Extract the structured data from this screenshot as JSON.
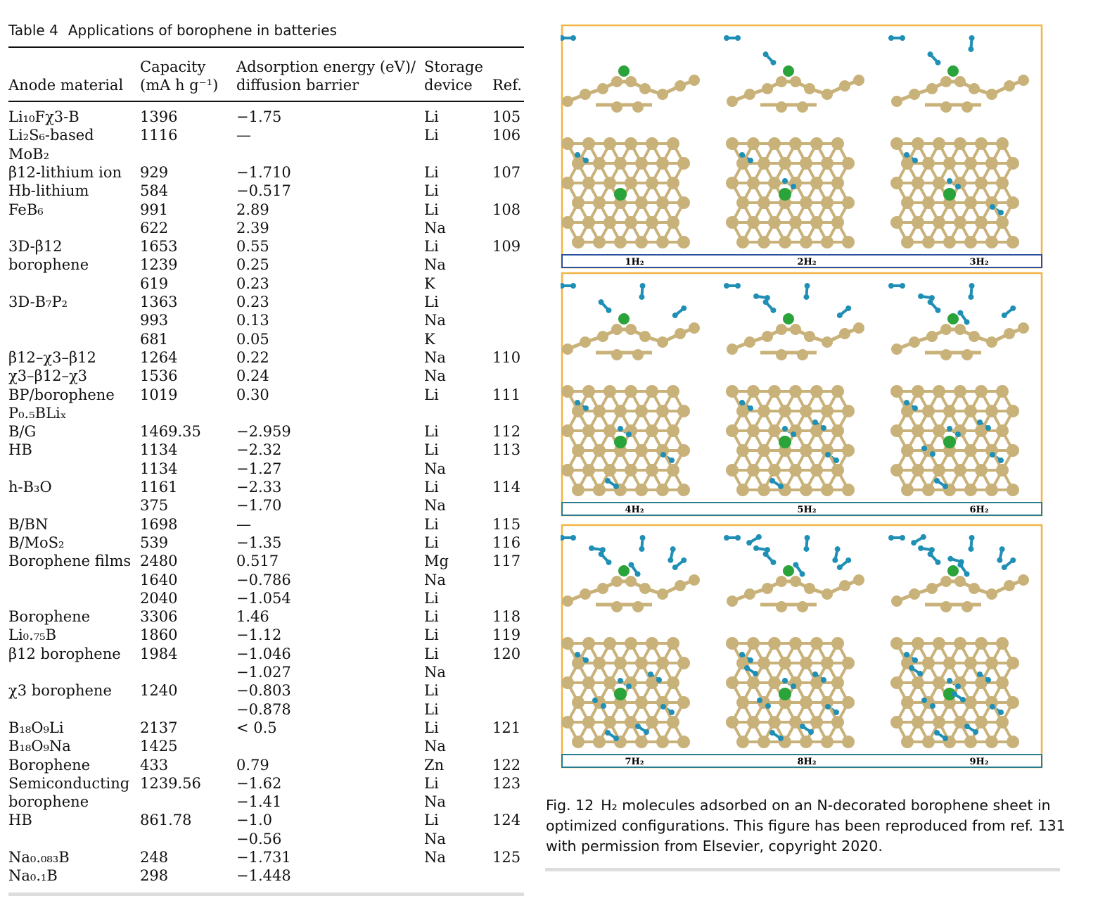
{
  "table": {
    "label": "Table 4",
    "title": "Applications of borophene in batteries",
    "headers": {
      "anode_line1": "",
      "anode_line2": "Anode material",
      "capacity_line1": "Capacity",
      "capacity_line2": "(mA h g⁻¹)",
      "energy_line1": "Adsorption energy (eV)/",
      "energy_line2": "diffusion barrier",
      "device_line1": "Storage",
      "device_line2": "device",
      "ref_line2": "Ref."
    },
    "rows": [
      {
        "a": "Li₁₀Fχ3-B",
        "c": "1396",
        "e": "−1.75",
        "d": "Li",
        "r": "105"
      },
      {
        "a": "Li₂S₆-based",
        "c": "1116",
        "e": "—",
        "d": "Li",
        "r": "106"
      },
      {
        "a": "MoB₂",
        "c": "",
        "e": "",
        "d": "",
        "r": ""
      },
      {
        "a": "β12-lithium ion",
        "c": "929",
        "e": "−1.710",
        "d": "Li",
        "r": "107"
      },
      {
        "a": "Hb-lithium",
        "c": "584",
        "e": "−0.517",
        "d": "Li",
        "r": ""
      },
      {
        "a": "FeB₆",
        "c": "991",
        "e": "2.89",
        "d": "Li",
        "r": "108"
      },
      {
        "a": "",
        "c": "622",
        "e": "2.39",
        "d": "Na",
        "r": ""
      },
      {
        "a": "3D-β12",
        "c": "1653",
        "e": "0.55",
        "d": "Li",
        "r": "109"
      },
      {
        "a": "borophene",
        "c": "1239",
        "e": "0.25",
        "d": "Na",
        "r": ""
      },
      {
        "a": "",
        "c": "619",
        "e": "0.23",
        "d": "K",
        "r": ""
      },
      {
        "a": "3D-B₇P₂",
        "c": "1363",
        "e": "0.23",
        "d": "Li",
        "r": ""
      },
      {
        "a": "",
        "c": "993",
        "e": "0.13",
        "d": "Na",
        "r": ""
      },
      {
        "a": "",
        "c": "681",
        "e": "0.05",
        "d": "K",
        "r": ""
      },
      {
        "a": "β12–χ3–β12",
        "c": "1264",
        "e": "0.22",
        "d": "Na",
        "r": "110"
      },
      {
        "a": "χ3–β12–χ3",
        "c": "1536",
        "e": "0.24",
        "d": "Na",
        "r": ""
      },
      {
        "a": "BP/borophene",
        "c": "1019",
        "e": "0.30",
        "d": "Li",
        "r": "111"
      },
      {
        "a": "P₀.₅BLiₓ",
        "c": "",
        "e": "",
        "d": "",
        "r": ""
      },
      {
        "a": "B/G",
        "c": "1469.35",
        "e": "−2.959",
        "d": "Li",
        "r": "112"
      },
      {
        "a": "HB",
        "c": "1134",
        "e": "−2.32",
        "d": "Li",
        "r": "113"
      },
      {
        "a": "",
        "c": "1134",
        "e": "−1.27",
        "d": "Na",
        "r": ""
      },
      {
        "a": "h-B₃O",
        "c": "1161",
        "e": "−2.33",
        "d": "Li",
        "r": "114"
      },
      {
        "a": "",
        "c": "375",
        "e": "−1.70",
        "d": "Na",
        "r": ""
      },
      {
        "a": "B/BN",
        "c": "1698",
        "e": "—",
        "d": "Li",
        "r": "115"
      },
      {
        "a": "B/MoS₂",
        "c": "539",
        "e": "−1.35",
        "d": "Li",
        "r": "116"
      },
      {
        "a": "Borophene films",
        "c": "2480",
        "e": "0.517",
        "d": "Mg",
        "r": "117"
      },
      {
        "a": "",
        "c": "1640",
        "e": "−0.786",
        "d": "Na",
        "r": ""
      },
      {
        "a": "",
        "c": "2040",
        "e": "−1.054",
        "d": "Li",
        "r": ""
      },
      {
        "a": "Borophene",
        "c": "3306",
        "e": "1.46",
        "d": "Li",
        "r": "118"
      },
      {
        "a": "Li₀.₇₅B",
        "c": "1860",
        "e": "−1.12",
        "d": "Li",
        "r": "119"
      },
      {
        "a": "β12 borophene",
        "c": "1984",
        "e": "−1.046",
        "d": "Li",
        "r": "120"
      },
      {
        "a": "",
        "c": "",
        "e": "−1.027",
        "d": "Na",
        "r": ""
      },
      {
        "a": "χ3 borophene",
        "c": "1240",
        "e": "−0.803",
        "d": "Li",
        "r": ""
      },
      {
        "a": "",
        "c": "",
        "e": "−0.878",
        "d": "Li",
        "r": ""
      },
      {
        "a": "B₁₈O₉Li",
        "c": "2137",
        "e": "< 0.5",
        "d": "Li",
        "r": "121"
      },
      {
        "a": "B₁₈O₉Na",
        "c": "1425",
        "e": "",
        "d": "Na",
        "r": ""
      },
      {
        "a": "Borophene",
        "c": "433",
        "e": "0.79",
        "d": "Zn",
        "r": "122"
      },
      {
        "a": "Semiconducting",
        "c": "1239.56",
        "e": "−1.62",
        "d": "Li",
        "r": "123"
      },
      {
        "a": "borophene",
        "c": "",
        "e": "−1.41",
        "d": "Na",
        "r": ""
      },
      {
        "a": "HB",
        "c": "861.78",
        "e": "−1.0",
        "d": "Li",
        "r": "124"
      },
      {
        "a": "",
        "c": "",
        "e": "−0.56",
        "d": "Na",
        "r": ""
      },
      {
        "a": "Na₀.₀₈₃B",
        "c": "248",
        "e": "−1.731",
        "d": "Na",
        "r": "125"
      },
      {
        "a": "Na₀.₁B",
        "c": "298",
        "e": "−1.448",
        "d": "",
        "r": ""
      }
    ]
  },
  "figure": {
    "panels": [
      "1H₂",
      "2H₂",
      "3H₂",
      "4H₂",
      "5H₂",
      "6H₂",
      "7H₂",
      "8H₂",
      "9H₂"
    ],
    "colors": {
      "boron": "#c9b27a",
      "nitrogen": "#2aa33a",
      "hydrogen": "#1f8fb5",
      "frame": "#f2b544",
      "label_box_top": "#2a4f9c",
      "label_box": "#2a7d8f"
    },
    "caption_label": "Fig. 12",
    "caption_text": "H₂ molecules adsorbed on an N-decorated borophene sheet in optimized configurations. This figure has been reproduced from ref. 131 with permission from Elsevier, copyright 2020."
  }
}
